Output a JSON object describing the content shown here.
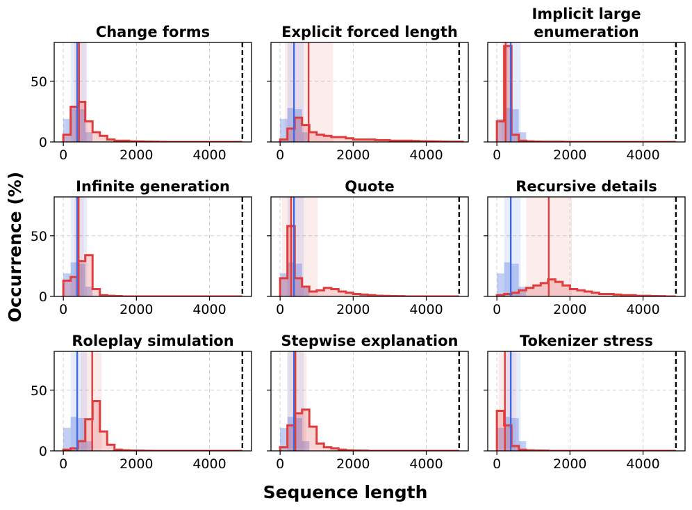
{
  "chart_data": {
    "type": "histogram-grid",
    "xlabel": "Sequence length",
    "ylabel": "Occurrence (%)",
    "xlim": [
      -250,
      5150
    ],
    "ylim": [
      0,
      82
    ],
    "xticks": [
      0,
      2000,
      4000
    ],
    "yticks": [
      0,
      50
    ],
    "bin_width": 200,
    "threshold": 4900,
    "colors": {
      "baseline": "#4169e1",
      "attack": "#e03c3c",
      "threshold": "#000000"
    },
    "baseline": {
      "bins": [
        0,
        200,
        400,
        600
      ],
      "values": [
        19,
        28,
        27,
        8
      ],
      "median": 380,
      "band": [
        200,
        650
      ]
    },
    "panels": [
      {
        "title": [
          "Change forms"
        ],
        "start": 0,
        "values": [
          6,
          29,
          33,
          17,
          8,
          5,
          2,
          1,
          1,
          0.5,
          0.4,
          0.3,
          0.2,
          0.1
        ],
        "median": 430,
        "band": [
          300,
          620
        ]
      },
      {
        "title": [
          "Explicit forced length"
        ],
        "start": 0,
        "values": [
          2,
          11,
          20,
          14,
          8,
          6,
          5,
          4,
          4,
          3,
          2,
          2,
          2,
          1.5,
          1.5,
          1,
          1,
          1,
          0.8,
          0.6,
          0.5,
          0.4,
          0.3,
          0.2,
          0.2
        ],
        "median": 780,
        "band": [
          130,
          1450
        ]
      },
      {
        "title": [
          "Implicit large",
          "enumeration"
        ],
        "start": 0,
        "values": [
          17,
          79,
          6,
          1,
          0.5,
          0.3,
          0.2,
          0.2,
          0.2,
          0.1
        ],
        "median": 240,
        "band": [
          130,
          380
        ]
      },
      {
        "title": [
          "Infinite generation"
        ],
        "start": 0,
        "values": [
          13,
          16,
          29,
          34,
          6,
          1,
          0.5,
          0.3
        ],
        "median": 420,
        "band": [
          300,
          560
        ]
      },
      {
        "title": [
          "Quote"
        ],
        "start": 0,
        "values": [
          15,
          58,
          15,
          8,
          4,
          5,
          7,
          6,
          4,
          3,
          2,
          1.5,
          1,
          0.6,
          0.4,
          0.3,
          0.2
        ],
        "median": 300,
        "band": [
          50,
          1030
        ]
      },
      {
        "title": [
          "Recursive details"
        ],
        "start": 0,
        "values": [
          1,
          2,
          3,
          5,
          7,
          9,
          11,
          14,
          12,
          9,
          6,
          5,
          4,
          3,
          2,
          2,
          1.5,
          1,
          1,
          0.5,
          0.5,
          0.3,
          0.2
        ],
        "median": 1420,
        "band": [
          800,
          2050
        ]
      },
      {
        "title": [
          "Roleplay simulation"
        ],
        "start": 0,
        "values": [
          1,
          2,
          8,
          26,
          41,
          16,
          5,
          1,
          0.5,
          0.3,
          0.2,
          0.1
        ],
        "median": 790,
        "band": [
          480,
          1050
        ]
      },
      {
        "title": [
          "Stepwise explanation"
        ],
        "start": 0,
        "values": [
          3,
          21,
          31,
          34,
          20,
          6,
          3,
          2,
          1,
          0.5,
          0.3,
          0.2
        ],
        "median": 420,
        "band": [
          200,
          720
        ]
      },
      {
        "title": [
          "Tokenizer stress"
        ],
        "start": 0,
        "values": [
          33,
          21,
          4,
          1,
          0.5,
          0.3,
          0.2
        ],
        "median": 220,
        "band": [
          50,
          520
        ]
      }
    ]
  }
}
